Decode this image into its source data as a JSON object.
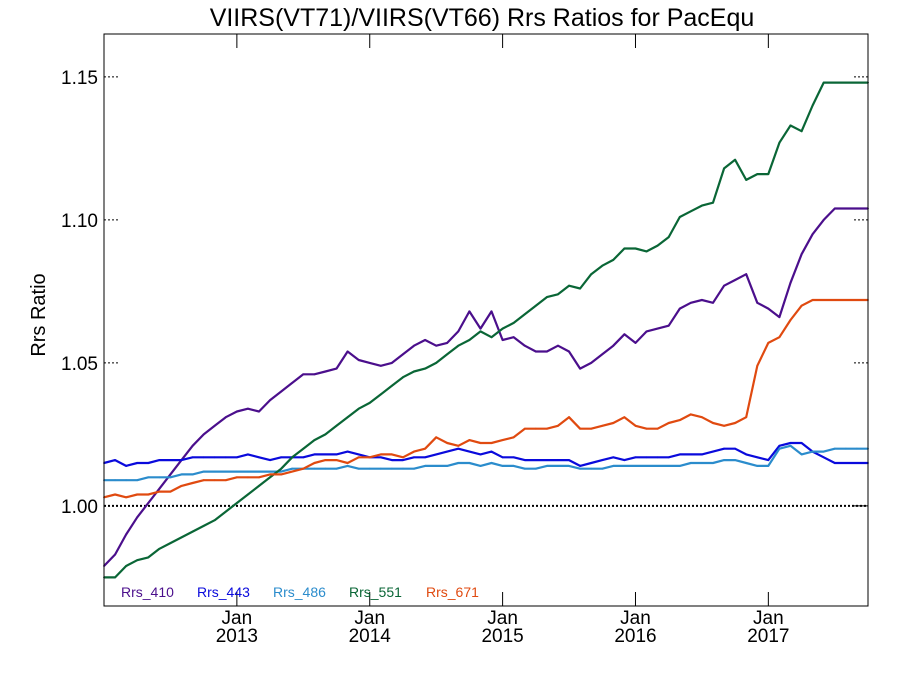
{
  "chart_data": {
    "type": "line",
    "title": "VIIRS(VT71)/VIIRS(VT66)  Rrs Ratios for PacEqu",
    "ylabel": "Rrs Ratio",
    "xlabel": "",
    "ylim": [
      0.965,
      1.165
    ],
    "xlim": [
      "2012-01",
      "2017-10"
    ],
    "y_ticks": [
      {
        "value": 1.0,
        "label": "1.00"
      },
      {
        "value": 1.05,
        "label": "1.05"
      },
      {
        "value": 1.1,
        "label": "1.10"
      },
      {
        "value": 1.15,
        "label": "1.15"
      }
    ],
    "x_ticks": [
      {
        "value": "2013-01",
        "line1": "Jan",
        "line2": "2013"
      },
      {
        "value": "2014-01",
        "line1": "Jan",
        "line2": "2014"
      },
      {
        "value": "2015-01",
        "line1": "Jan",
        "line2": "2015"
      },
      {
        "value": "2016-01",
        "line1": "Jan",
        "line2": "2016"
      },
      {
        "value": "2017-01",
        "line1": "Jan",
        "line2": "2017"
      }
    ],
    "reference_line": 1.0,
    "legend_position": "bottom-left",
    "x": [
      "2012-01",
      "2012-02",
      "2012-03",
      "2012-04",
      "2012-05",
      "2012-06",
      "2012-07",
      "2012-08",
      "2012-09",
      "2012-10",
      "2012-11",
      "2012-12",
      "2013-01",
      "2013-02",
      "2013-03",
      "2013-04",
      "2013-05",
      "2013-06",
      "2013-07",
      "2013-08",
      "2013-09",
      "2013-10",
      "2013-11",
      "2013-12",
      "2014-01",
      "2014-02",
      "2014-03",
      "2014-04",
      "2014-05",
      "2014-06",
      "2014-07",
      "2014-08",
      "2014-09",
      "2014-10",
      "2014-11",
      "2014-12",
      "2015-01",
      "2015-02",
      "2015-03",
      "2015-04",
      "2015-05",
      "2015-06",
      "2015-07",
      "2015-08",
      "2015-09",
      "2015-10",
      "2015-11",
      "2015-12",
      "2016-01",
      "2016-02",
      "2016-03",
      "2016-04",
      "2016-05",
      "2016-06",
      "2016-07",
      "2016-08",
      "2016-09",
      "2016-10",
      "2016-11",
      "2016-12",
      "2017-01",
      "2017-02",
      "2017-03",
      "2017-04",
      "2017-05",
      "2017-06",
      "2017-07",
      "2017-08",
      "2017-09",
      "2017-10"
    ],
    "series": [
      {
        "name": "Rrs_410",
        "color": "#4b0f8c",
        "values": [
          0.979,
          0.983,
          0.99,
          0.996,
          1.001,
          1.006,
          1.011,
          1.016,
          1.021,
          1.025,
          1.028,
          1.031,
          1.033,
          1.034,
          1.033,
          1.037,
          1.04,
          1.043,
          1.046,
          1.046,
          1.047,
          1.048,
          1.054,
          1.051,
          1.05,
          1.049,
          1.05,
          1.053,
          1.056,
          1.058,
          1.056,
          1.057,
          1.061,
          1.068,
          1.062,
          1.068,
          1.058,
          1.059,
          1.056,
          1.054,
          1.054,
          1.056,
          1.054,
          1.048,
          1.05,
          1.053,
          1.056,
          1.06,
          1.057,
          1.061,
          1.062,
          1.063,
          1.069,
          1.071,
          1.072,
          1.071,
          1.077,
          1.079,
          1.081,
          1.071,
          1.069,
          1.066,
          1.078,
          1.088,
          1.095,
          1.1,
          1.104,
          1.104,
          1.104,
          1.104
        ]
      },
      {
        "name": "Rrs_443",
        "color": "#0a0adc",
        "values": [
          1.015,
          1.016,
          1.014,
          1.015,
          1.015,
          1.016,
          1.016,
          1.016,
          1.017,
          1.017,
          1.017,
          1.017,
          1.017,
          1.018,
          1.017,
          1.016,
          1.017,
          1.017,
          1.017,
          1.018,
          1.018,
          1.018,
          1.019,
          1.018,
          1.017,
          1.017,
          1.016,
          1.016,
          1.017,
          1.017,
          1.018,
          1.019,
          1.02,
          1.019,
          1.018,
          1.019,
          1.017,
          1.017,
          1.016,
          1.016,
          1.016,
          1.016,
          1.016,
          1.014,
          1.015,
          1.016,
          1.017,
          1.016,
          1.017,
          1.017,
          1.017,
          1.017,
          1.018,
          1.018,
          1.018,
          1.019,
          1.02,
          1.02,
          1.018,
          1.017,
          1.016,
          1.021,
          1.022,
          1.022,
          1.019,
          1.017,
          1.015,
          1.015,
          1.015,
          1.015
        ]
      },
      {
        "name": "Rrs_486",
        "color": "#2b8ccc",
        "values": [
          1.009,
          1.009,
          1.009,
          1.009,
          1.01,
          1.01,
          1.01,
          1.011,
          1.011,
          1.012,
          1.012,
          1.012,
          1.012,
          1.012,
          1.012,
          1.012,
          1.012,
          1.013,
          1.013,
          1.013,
          1.013,
          1.013,
          1.014,
          1.013,
          1.013,
          1.013,
          1.013,
          1.013,
          1.013,
          1.014,
          1.014,
          1.014,
          1.015,
          1.015,
          1.014,
          1.015,
          1.014,
          1.014,
          1.013,
          1.013,
          1.014,
          1.014,
          1.014,
          1.013,
          1.013,
          1.013,
          1.014,
          1.014,
          1.014,
          1.014,
          1.014,
          1.014,
          1.014,
          1.015,
          1.015,
          1.015,
          1.016,
          1.016,
          1.015,
          1.014,
          1.014,
          1.02,
          1.021,
          1.018,
          1.019,
          1.019,
          1.02,
          1.02,
          1.02,
          1.02
        ]
      },
      {
        "name": "Rrs_551",
        "color": "#0a6636",
        "values": [
          0.975,
          0.975,
          0.979,
          0.981,
          0.982,
          0.985,
          0.987,
          0.989,
          0.991,
          0.993,
          0.995,
          0.998,
          1.001,
          1.004,
          1.007,
          1.01,
          1.013,
          1.017,
          1.02,
          1.023,
          1.025,
          1.028,
          1.031,
          1.034,
          1.036,
          1.039,
          1.042,
          1.045,
          1.047,
          1.048,
          1.05,
          1.053,
          1.056,
          1.058,
          1.061,
          1.059,
          1.062,
          1.064,
          1.067,
          1.07,
          1.073,
          1.074,
          1.077,
          1.076,
          1.081,
          1.084,
          1.086,
          1.09,
          1.09,
          1.089,
          1.091,
          1.094,
          1.101,
          1.103,
          1.105,
          1.106,
          1.118,
          1.121,
          1.114,
          1.116,
          1.116,
          1.127,
          1.133,
          1.131,
          1.14,
          1.148,
          1.148,
          1.148,
          1.148,
          1.148
        ]
      },
      {
        "name": "Rrs_671",
        "color": "#e04a10",
        "values": [
          1.003,
          1.004,
          1.003,
          1.004,
          1.004,
          1.005,
          1.005,
          1.007,
          1.008,
          1.009,
          1.009,
          1.009,
          1.01,
          1.01,
          1.01,
          1.011,
          1.011,
          1.012,
          1.013,
          1.015,
          1.016,
          1.016,
          1.015,
          1.017,
          1.017,
          1.018,
          1.018,
          1.017,
          1.019,
          1.02,
          1.024,
          1.022,
          1.021,
          1.023,
          1.022,
          1.022,
          1.023,
          1.024,
          1.027,
          1.027,
          1.027,
          1.028,
          1.031,
          1.027,
          1.027,
          1.028,
          1.029,
          1.031,
          1.028,
          1.027,
          1.027,
          1.029,
          1.03,
          1.032,
          1.031,
          1.029,
          1.028,
          1.029,
          1.031,
          1.049,
          1.057,
          1.059,
          1.065,
          1.07,
          1.072,
          1.072,
          1.072,
          1.072,
          1.072,
          1.072
        ]
      }
    ]
  }
}
